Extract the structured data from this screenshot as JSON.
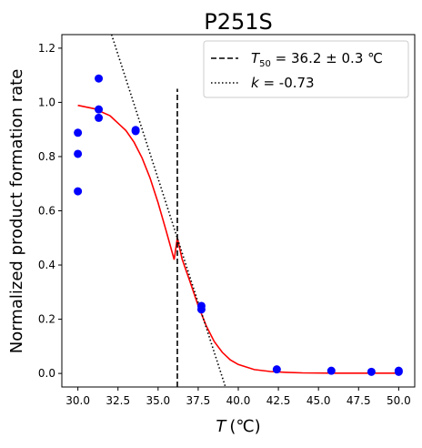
{
  "chart_data": {
    "type": "scatter",
    "title": "P251S",
    "xlabel_var": "T",
    "xlabel_unit": "(℃)",
    "ylabel": "Normalized product formation rate",
    "xlim": [
      29.0,
      51.0
    ],
    "ylim": [
      -0.05,
      1.25
    ],
    "xticks": [
      30.0,
      32.5,
      35.0,
      37.5,
      40.0,
      42.5,
      45.0,
      47.5,
      50.0
    ],
    "xtick_labels": [
      "30.0",
      "32.5",
      "35.0",
      "37.5",
      "40.0",
      "42.5",
      "45.0",
      "47.5",
      "50.0"
    ],
    "yticks": [
      0.0,
      0.2,
      0.4,
      0.6,
      0.8,
      1.0,
      1.2
    ],
    "ytick_labels": [
      "0.0",
      "0.2",
      "0.4",
      "0.6",
      "0.8",
      "1.0",
      "1.2"
    ],
    "grid": false,
    "legend_position": "top-right",
    "series": [
      {
        "kind": "points",
        "color": "#0000ff",
        "x": [
          30.0,
          30.0,
          30.0,
          31.3,
          31.3,
          31.3,
          33.6,
          33.6,
          37.7,
          37.7,
          42.4,
          45.8,
          48.3,
          50.0,
          50.0
        ],
        "y": [
          0.888,
          0.81,
          0.672,
          1.088,
          0.974,
          0.943,
          0.898,
          0.894,
          0.249,
          0.236,
          0.015,
          0.01,
          0.006,
          0.006,
          0.01
        ]
      },
      {
        "kind": "fit",
        "color": "#ff0000",
        "x": [
          30.0,
          31.0,
          32.0,
          33.0,
          33.5,
          34.0,
          34.5,
          35.0,
          35.5,
          36.0,
          36.2,
          36.5,
          37.0,
          37.5,
          38.0,
          38.5,
          39.0,
          39.5,
          40.0,
          41.0,
          42.0,
          43.0,
          44.0,
          46.0,
          48.0,
          50.0
        ],
        "y": [
          0.989,
          0.977,
          0.951,
          0.896,
          0.853,
          0.795,
          0.721,
          0.63,
          0.527,
          0.42,
          0.5,
          0.421,
          0.337,
          0.25,
          0.176,
          0.118,
          0.078,
          0.05,
          0.033,
          0.014,
          0.007,
          0.004,
          0.002,
          0.001,
          0.001,
          0.001
        ]
      },
      {
        "kind": "vline",
        "name_prefix": "T",
        "name_sub": "50",
        "name_rest": " = 36.2 ± 0.3 ℃",
        "color": "#000000",
        "x": 36.2,
        "y": [
          -0.05,
          1.05
        ]
      },
      {
        "kind": "slope",
        "name_prefix": "k",
        "name_rest": " = -0.73",
        "color": "#000000",
        "x": [
          32.1,
          39.2
        ],
        "y": [
          1.25,
          -0.05
        ]
      }
    ]
  }
}
